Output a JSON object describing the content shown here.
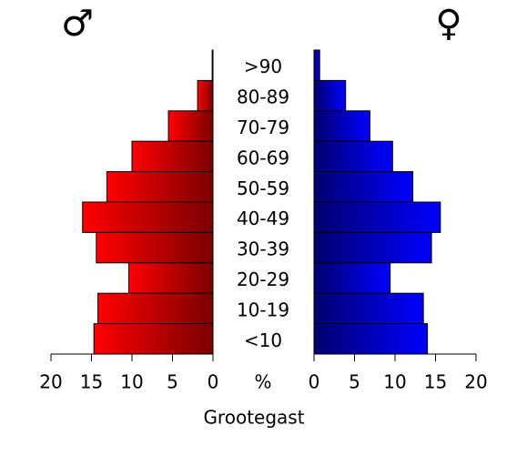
{
  "chart_data": {
    "type": "pyramid",
    "title": "Grootegast",
    "xlabel": "%",
    "categories": [
      ">90",
      "80-89",
      "70-79",
      "60-69",
      "50-59",
      "40-49",
      "30-39",
      "20-29",
      "10-19",
      "<10"
    ],
    "series": [
      {
        "name": "♂",
        "color": "#ff0000",
        "values": [
          0.1,
          1.9,
          5.5,
          10.0,
          13.1,
          16.1,
          14.4,
          10.4,
          14.2,
          14.7
        ]
      },
      {
        "name": "♀",
        "color": "#0000ff",
        "values": [
          0.7,
          3.9,
          6.9,
          9.7,
          12.2,
          15.6,
          14.5,
          9.4,
          13.5,
          14.0
        ]
      }
    ],
    "xlim": [
      0,
      20
    ],
    "xticks": [
      0,
      5,
      10,
      15,
      20
    ]
  }
}
